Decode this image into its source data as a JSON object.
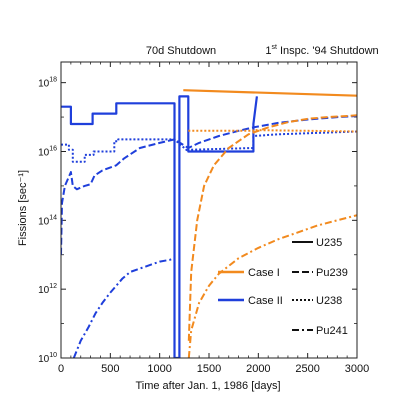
{
  "chart_data": {
    "type": "line",
    "xlabel": "Time after Jan. 1, 1986 [days]",
    "ylabel": "Fissions [sec⁻¹]",
    "xlim": [
      0,
      3000
    ],
    "ylim_log10": [
      10,
      18.6
    ],
    "y_scale": "log",
    "x_ticks": [
      0,
      500,
      1000,
      1500,
      2000,
      2500,
      3000
    ],
    "y_ticks": [
      {
        "value": 10,
        "label": "10",
        "exp": "10"
      },
      {
        "value": 12,
        "label": "10",
        "exp": "12"
      },
      {
        "value": 14,
        "label": "10",
        "exp": "14"
      },
      {
        "value": 16,
        "label": "10",
        "exp": "16"
      },
      {
        "value": 18,
        "label": "10",
        "exp": "18"
      }
    ],
    "annotations": {
      "shutdown_70d": "70d Shutdown",
      "inspection_prefix": "1",
      "inspection_sup": "st",
      "inspection_suffix": " Inspc. '94 Shutdown"
    },
    "legend_cases": [
      {
        "label": "Case I",
        "color": "#f28a1e"
      },
      {
        "label": "Case II",
        "color": "#1f3fdb"
      }
    ],
    "legend_isotopes": [
      {
        "label": "U235",
        "dash": "solid"
      },
      {
        "label": "Pu239",
        "dash": "dashed"
      },
      {
        "label": "U238",
        "dash": "dotted"
      },
      {
        "label": "Pu241",
        "dash": "dashdot"
      }
    ],
    "series": [
      {
        "case": "Case II",
        "isotope": "U235",
        "color": "#1f3fdb",
        "dash": "solid",
        "x": [
          0,
          100,
          100,
          320,
          320,
          560,
          560,
          1150,
          1150,
          1200,
          1200,
          1290,
          1290,
          1950,
          1950,
          1985
        ],
        "log10_y": [
          17.3,
          17.3,
          16.8,
          16.8,
          17.1,
          17.1,
          17.4,
          17.4,
          10,
          10,
          17.6,
          17.6,
          16.0,
          16.0,
          16.8,
          17.6
        ]
      },
      {
        "case": "Case II",
        "isotope": "U238",
        "color": "#1f3fdb",
        "dash": "dotted",
        "x": [
          0,
          80,
          80,
          120,
          120,
          240,
          240,
          330,
          330,
          540,
          540,
          580,
          580,
          1150,
          1290,
          1290,
          1950,
          1950,
          2200,
          3000
        ],
        "log10_y": [
          16.2,
          16.2,
          16.05,
          16.05,
          15.7,
          15.7,
          15.9,
          15.9,
          16.0,
          16.0,
          16.3,
          16.3,
          16.35,
          16.35,
          16.0,
          16.05,
          16.1,
          16.45,
          16.5,
          16.58
        ]
      },
      {
        "case": "Case II",
        "isotope": "Pu239",
        "color": "#1f3fdb",
        "dash": "dashed",
        "x": [
          0,
          10,
          40,
          100,
          120,
          160,
          240,
          300,
          340,
          420,
          560,
          640,
          800,
          1000,
          1150,
          1290,
          1400,
          1600,
          1800,
          1950,
          2200,
          2500,
          2800,
          3000
        ],
        "log10_y": [
          13.0,
          14.5,
          15.0,
          15.4,
          15.0,
          14.9,
          15.0,
          15.05,
          15.3,
          15.45,
          15.6,
          15.8,
          16.1,
          16.25,
          16.35,
          16.1,
          16.25,
          16.45,
          16.6,
          16.7,
          16.83,
          16.93,
          17.0,
          17.03
        ]
      },
      {
        "case": "Case II",
        "isotope": "Pu241",
        "color": "#1f3fdb",
        "dash": "dashdot",
        "x": [
          130,
          200,
          280,
          350,
          420,
          500,
          560,
          620,
          700,
          800,
          900,
          1000,
          1100,
          1150
        ],
        "log10_y": [
          10.0,
          10.5,
          10.9,
          11.3,
          11.6,
          11.9,
          12.1,
          12.3,
          12.5,
          12.6,
          12.7,
          12.8,
          12.85,
          12.9
        ]
      },
      {
        "case": "Case I",
        "isotope": "U235",
        "color": "#f28a1e",
        "dash": "solid",
        "x": [
          1240,
          3000
        ],
        "log10_y": [
          17.78,
          17.62
        ]
      },
      {
        "case": "Case I",
        "isotope": "U238",
        "color": "#f28a1e",
        "dash": "dotted",
        "x": [
          1290,
          1950,
          1950,
          2500,
          3000
        ],
        "log10_y": [
          16.6,
          16.6,
          16.62,
          16.6,
          16.58
        ]
      },
      {
        "case": "Case I",
        "isotope": "Pu239",
        "color": "#f28a1e",
        "dash": "dashed",
        "x": [
          1295,
          1320,
          1380,
          1450,
          1550,
          1700,
          1900,
          2100,
          2300,
          2500,
          2700,
          2900,
          3000
        ],
        "log10_y": [
          10.5,
          12.5,
          14.0,
          15.0,
          15.6,
          16.1,
          16.5,
          16.7,
          16.85,
          16.95,
          17.0,
          17.03,
          17.05
        ]
      },
      {
        "case": "Case I",
        "isotope": "Pu241",
        "color": "#f28a1e",
        "dash": "dashdot",
        "x": [
          1295,
          1320,
          1400,
          1500,
          1600,
          1800,
          2000,
          2200,
          2400,
          2600,
          2800,
          3000
        ],
        "log10_y": [
          10.0,
          10.8,
          11.6,
          12.1,
          12.45,
          12.9,
          13.2,
          13.45,
          13.65,
          13.85,
          14.0,
          14.15
        ]
      }
    ]
  }
}
